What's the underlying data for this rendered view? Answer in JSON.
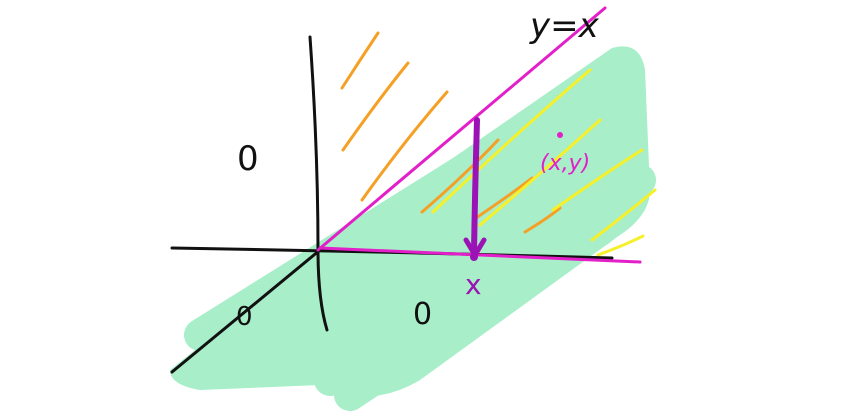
{
  "labels": {
    "line_equation": "y=x",
    "point_label": "(x,y)",
    "x_tick_label": "x",
    "region_upper_left": "0",
    "region_below_left": "0",
    "region_below_mid": "0"
  },
  "colors": {
    "background": "#ffffff",
    "axes": "#111111",
    "diagonal_and_edges": "#e21fc9",
    "green_shading": "#a7eec9",
    "orange_hatch": "#f5a024",
    "yellow_hatch": "#f6f02a",
    "vertical_slice": "#9b12b5",
    "point_and_label": "#e21fc9",
    "region_text": "#111111"
  }
}
